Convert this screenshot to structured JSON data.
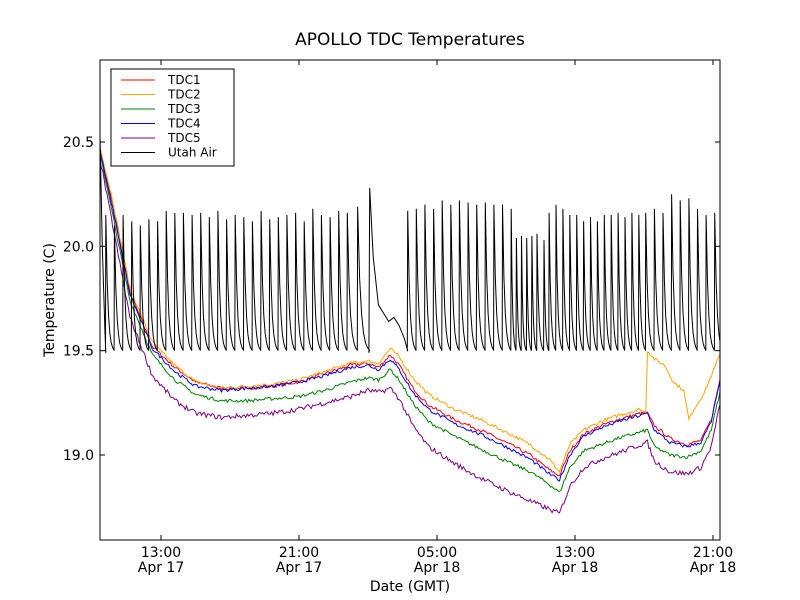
{
  "chart_data": {
    "type": "line",
    "title": "APOLLO TDC Temperatures",
    "xlabel": "Date (GMT)",
    "ylabel": "Temperature (C)",
    "x_units": "hours since Apr 17 00:00 GMT",
    "xlim": [
      9.46,
      45.4
    ],
    "ylim": [
      18.6,
      21.0
    ],
    "grid": false,
    "legend_position": "top-left",
    "x_ticks": [
      {
        "value": 13,
        "line1": "13:00",
        "line2": "Apr 17"
      },
      {
        "value": 21,
        "line1": "21:00",
        "line2": "Apr 17"
      },
      {
        "value": 29,
        "line1": "05:00",
        "line2": "Apr 18"
      },
      {
        "value": 37,
        "line1": "13:00",
        "line2": "Apr 18"
      },
      {
        "value": 45,
        "line1": "21:00",
        "line2": "Apr 18"
      }
    ],
    "y_ticks": [
      {
        "value": 19.0,
        "label": "19.0"
      },
      {
        "value": 19.5,
        "label": "19.5"
      },
      {
        "value": 20.0,
        "label": "20.0"
      },
      {
        "value": 20.5,
        "label": "20.5"
      }
    ],
    "series": [
      {
        "name": "TDC1",
        "color": "#ff0000",
        "points": [
          [
            9.46,
            20.47
          ],
          [
            10.2,
            20.2
          ],
          [
            11.2,
            19.78
          ],
          [
            12.5,
            19.52
          ],
          [
            13.8,
            19.42
          ],
          [
            15,
            19.35
          ],
          [
            16.5,
            19.32
          ],
          [
            18,
            19.32
          ],
          [
            19.5,
            19.33
          ],
          [
            21,
            19.35
          ],
          [
            22.5,
            19.39
          ],
          [
            24,
            19.43
          ],
          [
            25,
            19.44
          ],
          [
            25.6,
            19.42
          ],
          [
            26.3,
            19.48
          ],
          [
            26.8,
            19.43
          ],
          [
            27.6,
            19.32
          ],
          [
            28.5,
            19.24
          ],
          [
            30,
            19.17
          ],
          [
            31.5,
            19.12
          ],
          [
            33,
            19.06
          ],
          [
            34.4,
            19.0
          ],
          [
            35.5,
            18.93
          ],
          [
            36.1,
            18.9
          ],
          [
            36.7,
            19.02
          ],
          [
            37.5,
            19.1
          ],
          [
            38.5,
            19.14
          ],
          [
            39.5,
            19.17
          ],
          [
            40.8,
            19.2
          ],
          [
            41.2,
            19.2
          ],
          [
            41.6,
            19.14
          ],
          [
            42.5,
            19.08
          ],
          [
            43.5,
            19.05
          ],
          [
            44.3,
            19.07
          ],
          [
            44.9,
            19.17
          ],
          [
            45.4,
            19.36
          ]
        ],
        "noise": 0.008
      },
      {
        "name": "TDC2",
        "color": "#ffa500",
        "points": [
          [
            9.46,
            20.48
          ],
          [
            10.2,
            20.22
          ],
          [
            11.2,
            19.8
          ],
          [
            12.5,
            19.54
          ],
          [
            13.8,
            19.43
          ],
          [
            15,
            19.35
          ],
          [
            16.5,
            19.32
          ],
          [
            18,
            19.33
          ],
          [
            19.5,
            19.34
          ],
          [
            21,
            19.36
          ],
          [
            22.5,
            19.4
          ],
          [
            24,
            19.44
          ],
          [
            25,
            19.45
          ],
          [
            25.6,
            19.44
          ],
          [
            26.3,
            19.51
          ],
          [
            26.8,
            19.47
          ],
          [
            27.6,
            19.37
          ],
          [
            28.5,
            19.29
          ],
          [
            30,
            19.22
          ],
          [
            31.5,
            19.17
          ],
          [
            33,
            19.11
          ],
          [
            34.4,
            19.05
          ],
          [
            35.5,
            18.98
          ],
          [
            36.1,
            18.92
          ],
          [
            36.7,
            19.05
          ],
          [
            37.5,
            19.12
          ],
          [
            38.5,
            19.16
          ],
          [
            39.5,
            19.19
          ],
          [
            40.8,
            19.22
          ],
          [
            41.1,
            19.2
          ],
          [
            41.2,
            19.5
          ],
          [
            41.6,
            19.46
          ],
          [
            42.2,
            19.43
          ],
          [
            42.7,
            19.35
          ],
          [
            43.3,
            19.31
          ],
          [
            43.6,
            19.17
          ],
          [
            43.9,
            19.22
          ],
          [
            44.5,
            19.3
          ],
          [
            45.0,
            19.4
          ],
          [
            45.4,
            19.48
          ]
        ],
        "noise": 0.008
      },
      {
        "name": "TDC3",
        "color": "#008000",
        "points": [
          [
            9.46,
            20.45
          ],
          [
            10.2,
            20.15
          ],
          [
            11.2,
            19.74
          ],
          [
            12.5,
            19.48
          ],
          [
            13.8,
            19.36
          ],
          [
            15,
            19.29
          ],
          [
            16.5,
            19.26
          ],
          [
            18,
            19.26
          ],
          [
            19.5,
            19.27
          ],
          [
            21,
            19.28
          ],
          [
            22.5,
            19.31
          ],
          [
            24,
            19.35
          ],
          [
            25,
            19.37
          ],
          [
            25.6,
            19.36
          ],
          [
            26.3,
            19.41
          ],
          [
            26.8,
            19.36
          ],
          [
            27.6,
            19.25
          ],
          [
            28.5,
            19.16
          ],
          [
            30,
            19.09
          ],
          [
            31.5,
            19.03
          ],
          [
            33,
            18.97
          ],
          [
            34.4,
            18.92
          ],
          [
            35.5,
            18.86
          ],
          [
            36.1,
            18.82
          ],
          [
            36.7,
            18.94
          ],
          [
            37.5,
            19.02
          ],
          [
            38.5,
            19.05
          ],
          [
            39.5,
            19.08
          ],
          [
            40.8,
            19.11
          ],
          [
            41.2,
            19.12
          ],
          [
            41.6,
            19.04
          ],
          [
            42.5,
            19.0
          ],
          [
            43.5,
            18.99
          ],
          [
            44.3,
            19.02
          ],
          [
            44.9,
            19.12
          ],
          [
            45.4,
            19.3
          ]
        ],
        "noise": 0.008
      },
      {
        "name": "TDC4",
        "color": "#0000ff",
        "points": [
          [
            9.46,
            20.46
          ],
          [
            10.2,
            20.18
          ],
          [
            11.2,
            19.77
          ],
          [
            12.5,
            19.51
          ],
          [
            13.8,
            19.4
          ],
          [
            15,
            19.33
          ],
          [
            16.5,
            19.31
          ],
          [
            18,
            19.32
          ],
          [
            19.5,
            19.33
          ],
          [
            21,
            19.35
          ],
          [
            22.5,
            19.38
          ],
          [
            24,
            19.42
          ],
          [
            25,
            19.43
          ],
          [
            25.6,
            19.41
          ],
          [
            26.3,
            19.46
          ],
          [
            26.8,
            19.41
          ],
          [
            27.6,
            19.3
          ],
          [
            28.5,
            19.22
          ],
          [
            30,
            19.15
          ],
          [
            31.5,
            19.1
          ],
          [
            33,
            19.04
          ],
          [
            34.4,
            18.98
          ],
          [
            35.5,
            18.91
          ],
          [
            36.1,
            18.88
          ],
          [
            36.7,
            19.0
          ],
          [
            37.5,
            19.09
          ],
          [
            38.5,
            19.13
          ],
          [
            39.5,
            19.16
          ],
          [
            40.8,
            19.19
          ],
          [
            41.2,
            19.2
          ],
          [
            41.6,
            19.12
          ],
          [
            42.5,
            19.06
          ],
          [
            43.5,
            19.04
          ],
          [
            44.3,
            19.06
          ],
          [
            44.9,
            19.16
          ],
          [
            45.4,
            19.35
          ]
        ],
        "noise": 0.008
      },
      {
        "name": "TDC5",
        "color": "#800080",
        "points": [
          [
            9.46,
            20.42
          ],
          [
            10.2,
            20.1
          ],
          [
            11.2,
            19.66
          ],
          [
            12.5,
            19.38
          ],
          [
            13.8,
            19.26
          ],
          [
            15,
            19.2
          ],
          [
            16.5,
            19.18
          ],
          [
            18,
            19.19
          ],
          [
            19.5,
            19.2
          ],
          [
            21,
            19.22
          ],
          [
            22.5,
            19.25
          ],
          [
            24,
            19.28
          ],
          [
            25,
            19.31
          ],
          [
            25.6,
            19.3
          ],
          [
            26.3,
            19.32
          ],
          [
            26.8,
            19.27
          ],
          [
            27.6,
            19.14
          ],
          [
            28.5,
            19.04
          ],
          [
            30,
            18.96
          ],
          [
            31.5,
            18.89
          ],
          [
            33,
            18.83
          ],
          [
            34.4,
            18.78
          ],
          [
            35.5,
            18.74
          ],
          [
            36.1,
            18.72
          ],
          [
            36.7,
            18.85
          ],
          [
            37.5,
            18.94
          ],
          [
            38.5,
            18.98
          ],
          [
            39.5,
            19.01
          ],
          [
            40.8,
            19.05
          ],
          [
            41.2,
            19.06
          ],
          [
            41.6,
            18.97
          ],
          [
            42.5,
            18.92
          ],
          [
            43.5,
            18.91
          ],
          [
            44.3,
            18.94
          ],
          [
            44.9,
            19.04
          ],
          [
            45.4,
            19.24
          ]
        ],
        "noise": 0.012
      },
      {
        "name": "Utah Air",
        "color": "#000000",
        "type": "sawtooth",
        "start": [
          9.46,
          20.55
        ],
        "baseline": 19.49,
        "cycles": [
          [
            9.8,
            20.15
          ],
          [
            10.3,
            20.1
          ],
          [
            10.8,
            20.15
          ],
          [
            11.3,
            20.12
          ],
          [
            11.8,
            20.1
          ],
          [
            12.3,
            20.13
          ],
          [
            12.8,
            20.12
          ],
          [
            13.3,
            20.17
          ],
          [
            13.8,
            20.16
          ],
          [
            14.3,
            20.16
          ],
          [
            14.8,
            20.15
          ],
          [
            15.3,
            20.16
          ],
          [
            15.8,
            20.14
          ],
          [
            16.3,
            20.17
          ],
          [
            16.8,
            20.13
          ],
          [
            17.3,
            20.15
          ],
          [
            17.8,
            20.14
          ],
          [
            18.3,
            20.12
          ],
          [
            18.8,
            20.17
          ],
          [
            19.3,
            20.13
          ],
          [
            19.8,
            20.14
          ],
          [
            20.3,
            20.15
          ],
          [
            20.8,
            20.16
          ],
          [
            21.3,
            20.12
          ],
          [
            21.8,
            20.18
          ],
          [
            22.3,
            20.15
          ],
          [
            22.8,
            20.14
          ],
          [
            23.3,
            20.17
          ],
          [
            23.8,
            20.16
          ],
          [
            24.4,
            20.19
          ],
          [
            25.1,
            20.28
          ],
          [
            27.3,
            20.17
          ],
          [
            27.8,
            20.18
          ],
          [
            28.3,
            20.2
          ],
          [
            28.8,
            20.18
          ],
          [
            29.3,
            20.22
          ],
          [
            29.8,
            20.2
          ],
          [
            30.3,
            20.22
          ],
          [
            30.8,
            20.21
          ],
          [
            31.3,
            20.2
          ],
          [
            31.8,
            20.21
          ],
          [
            32.3,
            20.2
          ],
          [
            32.8,
            20.2
          ],
          [
            33.3,
            20.18
          ],
          [
            33.6,
            20.04
          ],
          [
            33.9,
            20.05
          ],
          [
            34.2,
            20.04
          ],
          [
            34.5,
            20.05
          ],
          [
            34.8,
            20.06
          ],
          [
            35.2,
            20.03
          ],
          [
            35.5,
            20.16
          ],
          [
            35.9,
            20.2
          ],
          [
            36.3,
            20.18
          ],
          [
            36.7,
            20.15
          ],
          [
            37.1,
            20.15
          ],
          [
            37.5,
            20.12
          ],
          [
            37.9,
            20.14
          ],
          [
            38.3,
            20.12
          ],
          [
            38.7,
            20.15
          ],
          [
            39.1,
            20.15
          ],
          [
            39.5,
            20.16
          ],
          [
            39.9,
            20.14
          ],
          [
            40.3,
            20.16
          ],
          [
            40.7,
            20.15
          ],
          [
            41.1,
            20.16
          ],
          [
            41.6,
            20.18
          ],
          [
            42.1,
            20.16
          ],
          [
            42.6,
            20.25
          ],
          [
            43.1,
            20.22
          ],
          [
            43.6,
            20.23
          ],
          [
            44.1,
            20.18
          ],
          [
            44.6,
            20.15
          ],
          [
            45.1,
            20.16
          ]
        ],
        "gap_segment": [
          [
            25.1,
            20.28
          ],
          [
            25.3,
            19.95
          ],
          [
            25.6,
            19.72
          ],
          [
            26.2,
            19.64
          ],
          [
            26.5,
            19.66
          ],
          [
            26.8,
            19.62
          ],
          [
            27.1,
            19.56
          ],
          [
            27.3,
            19.5
          ]
        ]
      }
    ]
  }
}
